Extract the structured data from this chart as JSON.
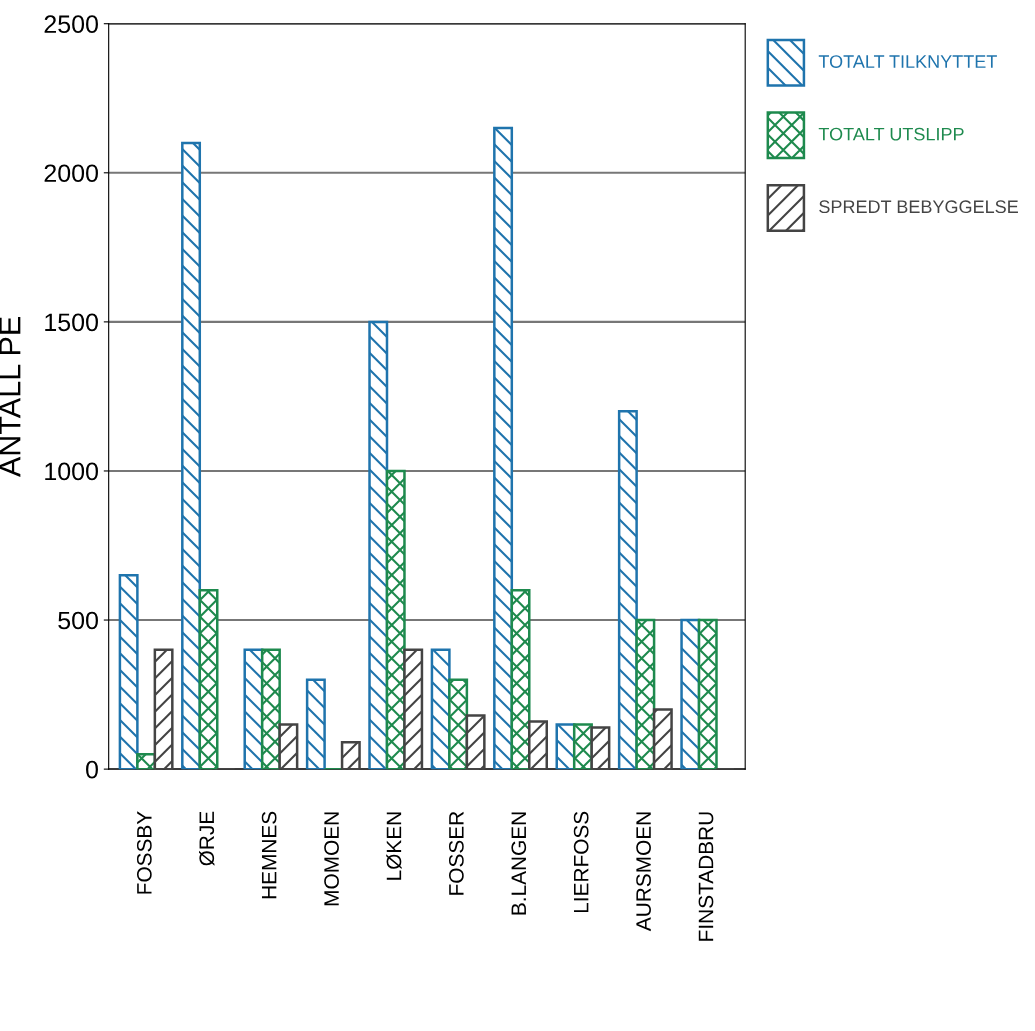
{
  "chart_data": {
    "type": "bar",
    "ylabel": "ANTALL PE",
    "categories": [
      "FOSSBY",
      "ØRJE",
      "HEMNES",
      "MOMOEN",
      "LØKEN",
      "FOSSER",
      "B.LANGEN",
      "LIERFOSS",
      "AURSMOEN",
      "FINSTADBRU"
    ],
    "series": [
      {
        "name": "TOTALT TILKNYTTET",
        "color": "#1f74ad",
        "values": [
          650,
          2100,
          400,
          300,
          1500,
          400,
          2150,
          150,
          1200,
          500
        ]
      },
      {
        "name": "TOTALT UTSLIPP",
        "color": "#1e8a4e",
        "values": [
          50,
          600,
          400,
          0,
          1000,
          300,
          600,
          150,
          500,
          500
        ]
      },
      {
        "name": "SPREDT BEBYGGELSE",
        "color": "#444444",
        "values": [
          400,
          0,
          150,
          90,
          400,
          180,
          160,
          140,
          200,
          0
        ]
      }
    ],
    "ylim": [
      0,
      2500
    ],
    "yticks": [
      0,
      500,
      1000,
      1500,
      2000,
      2500
    ],
    "grid": "y",
    "legend": "right"
  }
}
